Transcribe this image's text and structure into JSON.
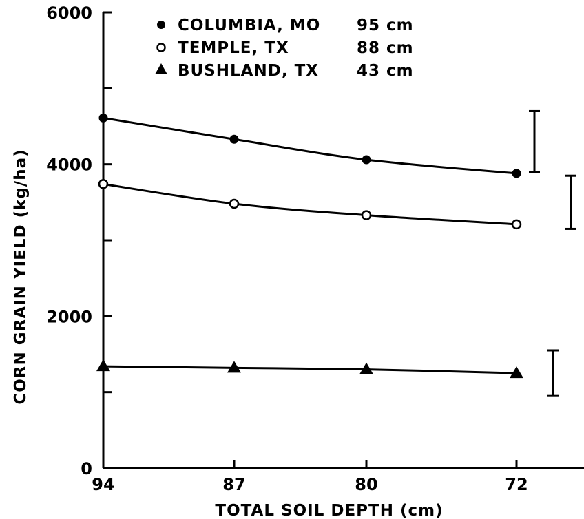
{
  "chart_data": {
    "type": "line",
    "xlabel": "TOTAL SOIL DEPTH (cm)",
    "ylabel": "CORN GRAIN YIELD (kg/ha)",
    "x_tick_labels": [
      "94",
      "87",
      "80",
      "72"
    ],
    "x": [
      94,
      87,
      80,
      72
    ],
    "x_reversed": true,
    "ylim": [
      0,
      6000
    ],
    "y_ticks": [
      0,
      1000,
      2000,
      3000,
      4000,
      5000,
      6000
    ],
    "y_tick_labels": [
      "0",
      "2000",
      "4000",
      "6000"
    ],
    "grid": false,
    "legend_placement": "top-left",
    "series": [
      {
        "name": "COLUMBIA, MO",
        "depth_label": "95 cm",
        "marker": "filled-circle",
        "values": [
          4610,
          4330,
          4060,
          3880
        ],
        "error_bar": [
          3900,
          4700
        ]
      },
      {
        "name": "TEMPLE, TX",
        "depth_label": "88 cm",
        "marker": "open-circle",
        "values": [
          3740,
          3480,
          3330,
          3210
        ],
        "error_bar": [
          3150,
          3850
        ]
      },
      {
        "name": "BUSHLAND, TX",
        "depth_label": "43 cm",
        "marker": "filled-triangle",
        "values": [
          1340,
          1320,
          1300,
          1250
        ],
        "error_bar": [
          950,
          1550
        ]
      }
    ]
  }
}
